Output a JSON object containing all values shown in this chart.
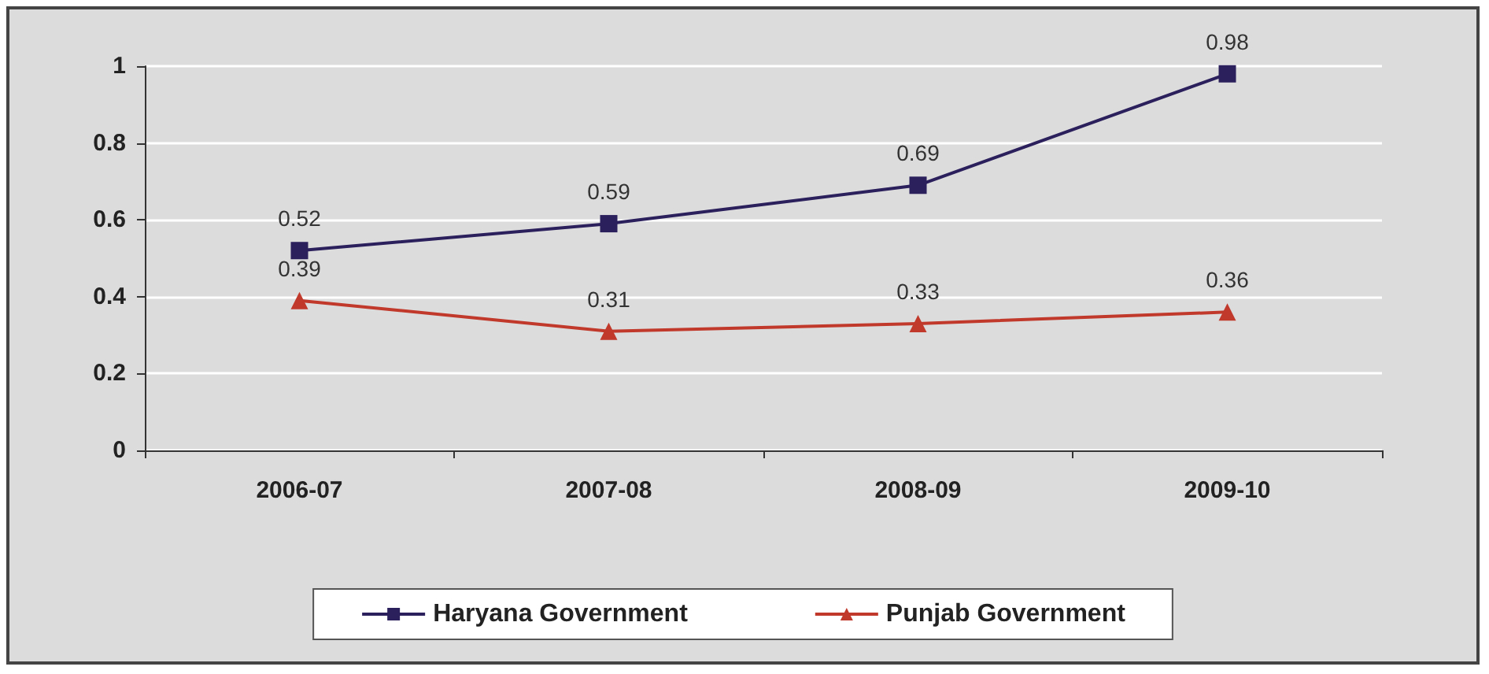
{
  "chart_data": {
    "type": "line",
    "categories": [
      "2006-07",
      "2007-08",
      "2008-09",
      "2009-10"
    ],
    "series": [
      {
        "name": "Haryana Government",
        "color": "#2b1f5c",
        "marker": "square",
        "values": [
          0.52,
          0.59,
          0.69,
          0.98
        ]
      },
      {
        "name": "Punjab Government",
        "color": "#c0392b",
        "marker": "triangle",
        "values": [
          0.39,
          0.31,
          0.33,
          0.36
        ]
      }
    ],
    "ylim": [
      0,
      1
    ],
    "yticks": [
      0,
      0.2,
      0.4,
      0.6,
      0.8,
      1
    ],
    "grid": "y",
    "legend": "bottom",
    "data_labels": true,
    "line_style": "solid"
  }
}
